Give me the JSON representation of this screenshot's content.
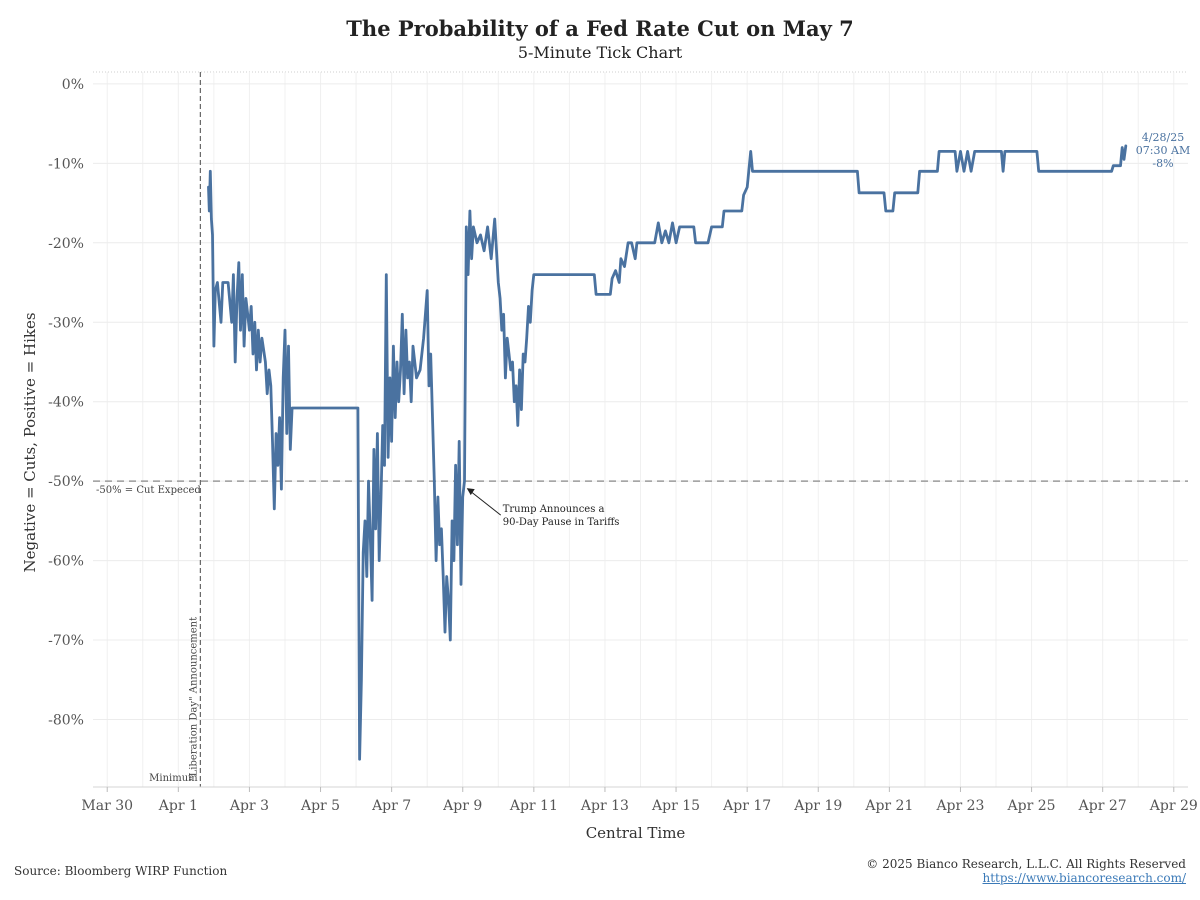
{
  "header": {
    "title": "The Probability of a Fed Rate Cut on May 7",
    "subtitle": "5-Minute Tick Chart"
  },
  "footer": {
    "source": "Source: Bloomberg WIRP Function",
    "copyright": "© 2025 Bianco Research, L.L.C. All Rights Reserved",
    "url": "https://www.biancoresearch.com/"
  },
  "chart_data": {
    "type": "line",
    "title": "The Probability of a Fed Rate Cut on May 7",
    "subtitle": "5-Minute Tick Chart",
    "xlabel": "Central Time",
    "ylabel": "Negative = Cuts, Positive = Hikes",
    "x_unit": "days since Mar 30, 2025 00:00 CT",
    "xlim": [
      -0.4,
      30.4
    ],
    "ylim": [
      -88.5,
      1.5
    ],
    "x_ticks": [
      {
        "x": 0,
        "label": "Mar 30"
      },
      {
        "x": 2,
        "label": "Apr 1"
      },
      {
        "x": 4,
        "label": "Apr 3"
      },
      {
        "x": 6,
        "label": "Apr 5"
      },
      {
        "x": 8,
        "label": "Apr 7"
      },
      {
        "x": 10,
        "label": "Apr 9"
      },
      {
        "x": 12,
        "label": "Apr 11"
      },
      {
        "x": 14,
        "label": "Apr 13"
      },
      {
        "x": 16,
        "label": "Apr 15"
      },
      {
        "x": 18,
        "label": "Apr 17"
      },
      {
        "x": 20,
        "label": "Apr 19"
      },
      {
        "x": 22,
        "label": "Apr 21"
      },
      {
        "x": 24,
        "label": "Apr 23"
      },
      {
        "x": 26,
        "label": "Apr 25"
      },
      {
        "x": 28,
        "label": "Apr 27"
      },
      {
        "x": 30,
        "label": "Apr 29"
      }
    ],
    "y_ticks": [
      {
        "y": 0,
        "label": "0%"
      },
      {
        "y": -10,
        "label": "-10%"
      },
      {
        "y": -20,
        "label": "-20%"
      },
      {
        "y": -30,
        "label": "-30%"
      },
      {
        "y": -40,
        "label": "-40%"
      },
      {
        "y": -50,
        "label": "-50%"
      },
      {
        "y": -60,
        "label": "-60%"
      },
      {
        "y": -70,
        "label": "-70%"
      },
      {
        "y": -80,
        "label": "-80%"
      }
    ],
    "grid": true,
    "series": [
      {
        "name": "",
        "color": "#4a72a0",
        "points": [
          [
            2.85,
            -13
          ],
          [
            2.87,
            -16
          ],
          [
            2.9,
            -11
          ],
          [
            2.93,
            -17
          ],
          [
            2.96,
            -19
          ],
          [
            3.0,
            -33
          ],
          [
            3.04,
            -26
          ],
          [
            3.1,
            -25
          ],
          [
            3.2,
            -30
          ],
          [
            3.25,
            -25
          ],
          [
            3.4,
            -25
          ],
          [
            3.5,
            -30
          ],
          [
            3.55,
            -24
          ],
          [
            3.6,
            -35
          ],
          [
            3.65,
            -27
          ],
          [
            3.7,
            -22.5
          ],
          [
            3.75,
            -31
          ],
          [
            3.8,
            -24
          ],
          [
            3.85,
            -33
          ],
          [
            3.9,
            -27
          ],
          [
            3.95,
            -29
          ],
          [
            4.0,
            -31
          ],
          [
            4.05,
            -28
          ],
          [
            4.1,
            -34
          ],
          [
            4.15,
            -30
          ],
          [
            4.2,
            -36
          ],
          [
            4.25,
            -31
          ],
          [
            4.3,
            -35
          ],
          [
            4.35,
            -32
          ],
          [
            4.45,
            -35
          ],
          [
            4.5,
            -39
          ],
          [
            4.55,
            -36
          ],
          [
            4.6,
            -38
          ],
          [
            4.65,
            -45
          ],
          [
            4.7,
            -53.5
          ],
          [
            4.75,
            -44
          ],
          [
            4.8,
            -48
          ],
          [
            4.85,
            -42
          ],
          [
            4.9,
            -51
          ],
          [
            4.95,
            -37
          ],
          [
            5.0,
            -31
          ],
          [
            5.05,
            -44
          ],
          [
            5.1,
            -33
          ],
          [
            5.15,
            -46
          ],
          [
            5.2,
            -40.8
          ],
          [
            7.05,
            -40.8
          ],
          [
            7.1,
            -85
          ],
          [
            7.15,
            -75
          ],
          [
            7.2,
            -59
          ],
          [
            7.25,
            -55
          ],
          [
            7.3,
            -62
          ],
          [
            7.35,
            -50
          ],
          [
            7.4,
            -57
          ],
          [
            7.45,
            -65
          ],
          [
            7.5,
            -46
          ],
          [
            7.55,
            -56
          ],
          [
            7.6,
            -44
          ],
          [
            7.65,
            -60
          ],
          [
            7.7,
            -52
          ],
          [
            7.75,
            -43
          ],
          [
            7.8,
            -48
          ],
          [
            7.85,
            -24
          ],
          [
            7.9,
            -47
          ],
          [
            7.95,
            -37
          ],
          [
            8.0,
            -45
          ],
          [
            8.05,
            -33
          ],
          [
            8.1,
            -42
          ],
          [
            8.15,
            -35
          ],
          [
            8.2,
            -40
          ],
          [
            8.25,
            -36
          ],
          [
            8.3,
            -29
          ],
          [
            8.35,
            -39
          ],
          [
            8.4,
            -31
          ],
          [
            8.45,
            -37
          ],
          [
            8.5,
            -35
          ],
          [
            8.55,
            -40
          ],
          [
            8.6,
            -33
          ],
          [
            8.7,
            -37
          ],
          [
            8.8,
            -36
          ],
          [
            8.9,
            -32
          ],
          [
            9.0,
            -26
          ],
          [
            9.05,
            -38
          ],
          [
            9.1,
            -34
          ],
          [
            9.15,
            -42
          ],
          [
            9.2,
            -50
          ],
          [
            9.25,
            -60
          ],
          [
            9.3,
            -52
          ],
          [
            9.35,
            -58
          ],
          [
            9.4,
            -56
          ],
          [
            9.45,
            -62
          ],
          [
            9.5,
            -69
          ],
          [
            9.55,
            -62
          ],
          [
            9.6,
            -65
          ],
          [
            9.65,
            -70
          ],
          [
            9.7,
            -55
          ],
          [
            9.75,
            -60
          ],
          [
            9.8,
            -48
          ],
          [
            9.85,
            -58
          ],
          [
            9.9,
            -45
          ],
          [
            9.95,
            -63
          ],
          [
            10.0,
            -52
          ],
          [
            10.05,
            -50
          ],
          [
            10.1,
            -18
          ],
          [
            10.15,
            -24
          ],
          [
            10.2,
            -16
          ],
          [
            10.25,
            -22
          ],
          [
            10.3,
            -18
          ],
          [
            10.4,
            -20
          ],
          [
            10.5,
            -19
          ],
          [
            10.6,
            -21
          ],
          [
            10.7,
            -18
          ],
          [
            10.8,
            -22
          ],
          [
            10.9,
            -17
          ],
          [
            11.0,
            -25
          ],
          [
            11.05,
            -27
          ],
          [
            11.1,
            -31
          ],
          [
            11.15,
            -29
          ],
          [
            11.2,
            -37
          ],
          [
            11.25,
            -32
          ],
          [
            11.3,
            -34
          ],
          [
            11.35,
            -36
          ],
          [
            11.4,
            -35
          ],
          [
            11.45,
            -40
          ],
          [
            11.5,
            -38
          ],
          [
            11.55,
            -43
          ],
          [
            11.6,
            -36
          ],
          [
            11.65,
            -41
          ],
          [
            11.7,
            -34
          ],
          [
            11.75,
            -35
          ],
          [
            11.8,
            -32
          ],
          [
            11.85,
            -28
          ],
          [
            11.9,
            -30
          ],
          [
            11.95,
            -26
          ],
          [
            12.0,
            -24
          ],
          [
            13.7,
            -24
          ],
          [
            13.75,
            -26.5
          ],
          [
            14.15,
            -26.5
          ],
          [
            14.2,
            -24.5
          ],
          [
            14.3,
            -23.5
          ],
          [
            14.4,
            -25
          ],
          [
            14.45,
            -22
          ],
          [
            14.55,
            -23
          ],
          [
            14.65,
            -20
          ],
          [
            14.75,
            -20
          ],
          [
            14.85,
            -22
          ],
          [
            14.9,
            -20
          ],
          [
            15.4,
            -20
          ],
          [
            15.5,
            -17.5
          ],
          [
            15.6,
            -20
          ],
          [
            15.7,
            -18.5
          ],
          [
            15.8,
            -20
          ],
          [
            15.9,
            -17.5
          ],
          [
            16.0,
            -20
          ],
          [
            16.1,
            -18
          ],
          [
            16.5,
            -18
          ],
          [
            16.55,
            -20
          ],
          [
            16.9,
            -20
          ],
          [
            17.0,
            -18
          ],
          [
            17.3,
            -18
          ],
          [
            17.35,
            -16
          ],
          [
            17.85,
            -16
          ],
          [
            17.9,
            -14
          ],
          [
            18.0,
            -13
          ],
          [
            18.1,
            -8.5
          ],
          [
            18.15,
            -11
          ],
          [
            21.1,
            -11
          ],
          [
            21.15,
            -13.7
          ],
          [
            21.85,
            -13.7
          ],
          [
            21.9,
            -16
          ],
          [
            22.1,
            -16
          ],
          [
            22.15,
            -13.7
          ],
          [
            22.8,
            -13.7
          ],
          [
            22.85,
            -11
          ],
          [
            23.35,
            -11
          ],
          [
            23.4,
            -8.5
          ],
          [
            23.85,
            -8.5
          ],
          [
            23.9,
            -11
          ],
          [
            24.0,
            -8.5
          ],
          [
            24.1,
            -11
          ],
          [
            24.2,
            -8.5
          ],
          [
            24.3,
            -11
          ],
          [
            24.4,
            -8.5
          ],
          [
            25.15,
            -8.5
          ],
          [
            25.2,
            -11
          ],
          [
            25.25,
            -8.5
          ],
          [
            26.15,
            -8.5
          ],
          [
            26.2,
            -11
          ],
          [
            28.25,
            -11
          ],
          [
            28.3,
            -10.3
          ],
          [
            28.5,
            -10.3
          ],
          [
            28.55,
            -8
          ],
          [
            28.6,
            -9.5
          ],
          [
            28.65,
            -7.8
          ]
        ]
      }
    ],
    "reference_lines": [
      {
        "axis": "y",
        "value": -50,
        "label": "-50% = Cut Expeced"
      },
      {
        "axis": "x",
        "value": 2.62,
        "label": "\"Liberation Day\" Announcement"
      }
    ],
    "annotations": [
      {
        "text": "Minimum",
        "x": 2.6,
        "y": -87.5
      },
      {
        "text": "Trump Announces a",
        "text2": "90-Day Pause in Tariffs",
        "x": 10.0,
        "y": -50.5
      },
      {
        "text": "4/28/25",
        "text2": "07:30 AM",
        "text3": "-8%",
        "x": 28.65,
        "y": -7.8
      }
    ]
  }
}
